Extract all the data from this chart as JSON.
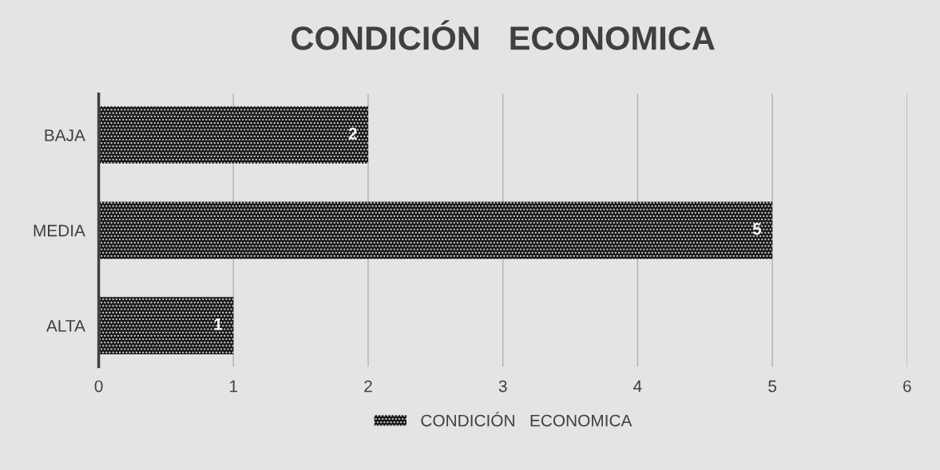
{
  "chart_data": {
    "type": "bar",
    "orientation": "horizontal",
    "title": "CONDICIÓN   ECONOMICA",
    "categories": [
      "BAJA",
      "MEDIA",
      "ALTA"
    ],
    "series": [
      {
        "name": "CONDICIÓN   ECONOMICA",
        "color": "#1a1a1a",
        "values": [
          2,
          5,
          1
        ]
      }
    ],
    "xlim": [
      0,
      6
    ],
    "xticks": [
      0,
      1,
      2,
      3,
      4,
      5,
      6
    ],
    "grid": "x",
    "legend": "bottom",
    "data_labels": true
  }
}
